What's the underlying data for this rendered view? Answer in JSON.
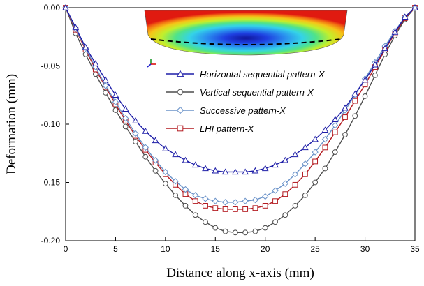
{
  "chart_data": {
    "type": "line",
    "xlabel": "Distance along x-axis (mm)",
    "ylabel": "Deformation (mm)",
    "xlim": [
      0,
      35
    ],
    "ylim": [
      -0.2,
      0
    ],
    "xticks": [
      0,
      5,
      10,
      15,
      20,
      25,
      30,
      35
    ],
    "yticks": [
      0.0,
      -0.05,
      -0.1,
      -0.15,
      -0.2
    ],
    "xtick_labels": [
      "0",
      "5",
      "10",
      "15",
      "20",
      "25",
      "30",
      "35"
    ],
    "ytick_labels": [
      "0.00",
      "-0.05",
      "-0.10",
      "-0.15",
      "-0.20"
    ],
    "grid": false,
    "legend_position": "upper-center",
    "inset": "contour plot of deformed plate with dashed line along x-axis",
    "series": [
      {
        "name": "Horizontal sequential pattern-X",
        "color": "#1f1fa8",
        "marker": "triangle",
        "x": [
          0,
          1,
          2,
          3,
          4,
          5,
          6,
          7,
          8,
          9,
          10,
          11,
          12,
          13,
          14,
          15,
          16,
          17,
          18,
          19,
          20,
          21,
          22,
          23,
          24,
          25,
          26,
          27,
          28,
          29,
          30,
          31,
          32,
          33,
          34,
          35
        ],
        "values": [
          0,
          -0.017,
          -0.034,
          -0.048,
          -0.062,
          -0.075,
          -0.087,
          -0.097,
          -0.106,
          -0.114,
          -0.121,
          -0.126,
          -0.131,
          -0.135,
          -0.138,
          -0.14,
          -0.141,
          -0.141,
          -0.141,
          -0.14,
          -0.138,
          -0.135,
          -0.131,
          -0.126,
          -0.12,
          -0.113,
          -0.105,
          -0.096,
          -0.086,
          -0.074,
          -0.062,
          -0.049,
          -0.035,
          -0.021,
          -0.008,
          0
        ]
      },
      {
        "name": "Vertical sequential pattern-X",
        "color": "#4d4d4d",
        "marker": "circle",
        "x": [
          0,
          1,
          2,
          3,
          4,
          5,
          6,
          7,
          8,
          9,
          10,
          11,
          12,
          13,
          14,
          15,
          16,
          17,
          18,
          19,
          20,
          21,
          22,
          23,
          24,
          25,
          26,
          27,
          28,
          29,
          30,
          31,
          32,
          33,
          34,
          35
        ],
        "values": [
          0,
          -0.022,
          -0.04,
          -0.057,
          -0.073,
          -0.088,
          -0.102,
          -0.115,
          -0.128,
          -0.14,
          -0.151,
          -0.161,
          -0.17,
          -0.178,
          -0.184,
          -0.189,
          -0.192,
          -0.193,
          -0.193,
          -0.192,
          -0.189,
          -0.184,
          -0.178,
          -0.17,
          -0.161,
          -0.15,
          -0.138,
          -0.124,
          -0.109,
          -0.093,
          -0.076,
          -0.058,
          -0.04,
          -0.024,
          -0.01,
          0
        ]
      },
      {
        "name": "Successive pattern-X",
        "color": "#6b93c9",
        "marker": "diamond",
        "x": [
          0,
          1,
          2,
          3,
          4,
          5,
          6,
          7,
          8,
          9,
          10,
          11,
          12,
          13,
          14,
          15,
          16,
          17,
          18,
          19,
          20,
          21,
          22,
          23,
          24,
          25,
          26,
          27,
          28,
          29,
          30,
          31,
          32,
          33,
          34,
          35
        ],
        "values": [
          0,
          -0.018,
          -0.035,
          -0.051,
          -0.067,
          -0.081,
          -0.095,
          -0.108,
          -0.12,
          -0.131,
          -0.141,
          -0.149,
          -0.156,
          -0.161,
          -0.164,
          -0.166,
          -0.167,
          -0.167,
          -0.166,
          -0.165,
          -0.162,
          -0.157,
          -0.151,
          -0.143,
          -0.134,
          -0.124,
          -0.113,
          -0.101,
          -0.088,
          -0.075,
          -0.061,
          -0.047,
          -0.033,
          -0.02,
          -0.008,
          0
        ]
      },
      {
        "name": "LHI pattern-X",
        "color": "#b3191f",
        "marker": "square",
        "x": [
          0,
          1,
          2,
          3,
          4,
          5,
          6,
          7,
          8,
          9,
          10,
          11,
          12,
          13,
          14,
          15,
          16,
          17,
          18,
          19,
          20,
          21,
          22,
          23,
          24,
          25,
          26,
          27,
          28,
          29,
          30,
          31,
          32,
          33,
          34,
          35
        ],
        "values": [
          0,
          -0.019,
          -0.036,
          -0.053,
          -0.068,
          -0.083,
          -0.097,
          -0.11,
          -0.122,
          -0.133,
          -0.143,
          -0.152,
          -0.16,
          -0.166,
          -0.17,
          -0.172,
          -0.173,
          -0.173,
          -0.173,
          -0.172,
          -0.17,
          -0.166,
          -0.16,
          -0.152,
          -0.143,
          -0.132,
          -0.12,
          -0.107,
          -0.094,
          -0.08,
          -0.066,
          -0.051,
          -0.036,
          -0.022,
          -0.009,
          0
        ]
      }
    ]
  }
}
